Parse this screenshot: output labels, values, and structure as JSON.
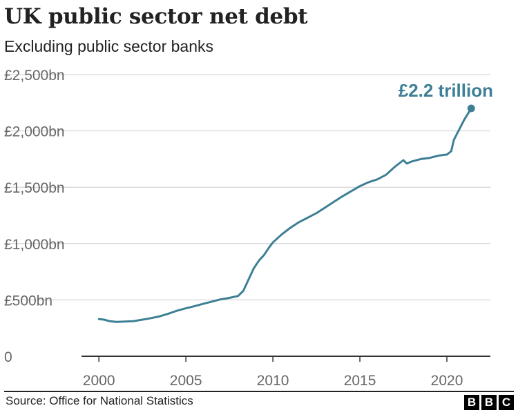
{
  "header": {
    "title": "UK public sector net debt",
    "subtitle": "Excluding public sector banks"
  },
  "footer": {
    "source": "Source: Office for National Statistics",
    "logo": "BBC"
  },
  "colors": {
    "series": "#3d7f94",
    "text": "#222222",
    "axis_text": "#666666",
    "grid": "#cccccc",
    "axis_line": "#333333"
  },
  "chart_data": {
    "type": "line",
    "title": "UK public sector net debt",
    "subtitle": "Excluding public sector banks",
    "xlabel": "",
    "ylabel": "",
    "xlim": [
      1999.0,
      2022.5
    ],
    "ylim": [
      0,
      2500
    ],
    "x_ticks": [
      2000,
      2005,
      2010,
      2015,
      2020
    ],
    "x_tick_labels": [
      "2000",
      "2005",
      "2010",
      "2015",
      "2020"
    ],
    "y_ticks": [
      0,
      500,
      1000,
      1500,
      2000,
      2500
    ],
    "y_tick_labels": [
      "0",
      "£500bn",
      "£1,000bn",
      "£1,500bn",
      "£2,000bn",
      "£2,500bn"
    ],
    "grid": true,
    "series": [
      {
        "name": "Public sector net debt",
        "unit": "£bn",
        "x": [
          2000.0,
          2000.3,
          2000.6,
          2001.0,
          2001.5,
          2002.0,
          2002.5,
          2003.0,
          2003.5,
          2004.0,
          2004.5,
          2005.0,
          2005.5,
          2006.0,
          2006.5,
          2007.0,
          2007.5,
          2008.0,
          2008.3,
          2008.6,
          2008.9,
          2009.2,
          2009.5,
          2009.8,
          2010.0,
          2010.5,
          2011.0,
          2011.5,
          2012.0,
          2012.5,
          2013.0,
          2013.5,
          2014.0,
          2014.5,
          2015.0,
          2015.5,
          2016.0,
          2016.5,
          2017.0,
          2017.5,
          2017.7,
          2018.0,
          2018.5,
          2019.0,
          2019.5,
          2020.0,
          2020.25,
          2020.4,
          2020.6,
          2020.8,
          2021.0,
          2021.2,
          2021.4
        ],
        "values": [
          330,
          325,
          312,
          305,
          308,
          312,
          325,
          338,
          355,
          378,
          405,
          425,
          445,
          465,
          485,
          505,
          518,
          535,
          580,
          680,
          780,
          850,
          900,
          970,
          1010,
          1080,
          1140,
          1190,
          1230,
          1270,
          1320,
          1370,
          1420,
          1465,
          1510,
          1545,
          1570,
          1610,
          1680,
          1740,
          1710,
          1730,
          1750,
          1760,
          1780,
          1790,
          1820,
          1920,
          1980,
          2040,
          2100,
          2150,
          2200
        ]
      }
    ],
    "annotations": [
      {
        "text": "£2.2 trillion",
        "x": 2021.4,
        "y": 2200
      }
    ]
  }
}
